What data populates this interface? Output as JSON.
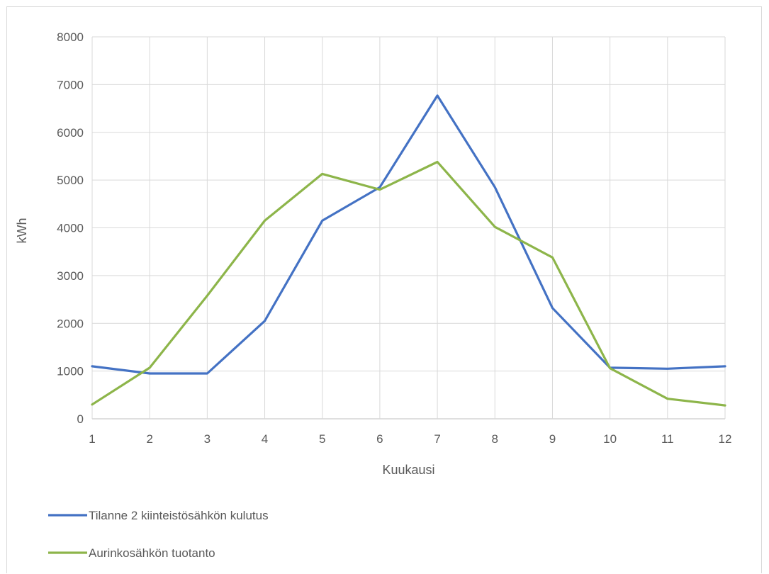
{
  "chart_data": {
    "type": "line",
    "x": [
      1,
      2,
      3,
      4,
      5,
      6,
      7,
      8,
      9,
      10,
      11,
      12
    ],
    "series": [
      {
        "name": "Tilanne 2 kiinteistösähkön kulutus",
        "color": "#4472C4",
        "values": [
          1100,
          950,
          950,
          2050,
          4150,
          4850,
          6770,
          4850,
          2320,
          1070,
          1050,
          1100
        ]
      },
      {
        "name": "Aurinkosähkön tuotanto",
        "color": "#8DB54A",
        "values": [
          300,
          1070,
          2580,
          4150,
          5130,
          4800,
          5380,
          4020,
          3380,
          1060,
          420,
          280
        ]
      }
    ],
    "xlabel": "Kuukausi",
    "ylabel": "kWh",
    "ylim": [
      0,
      8000
    ],
    "yticks": [
      0,
      1000,
      2000,
      3000,
      4000,
      5000,
      6000,
      7000,
      8000
    ],
    "xticks": [
      "1",
      "2",
      "3",
      "4",
      "5",
      "6",
      "7",
      "8",
      "9",
      "10",
      "11",
      "12"
    ],
    "grid": true,
    "legend_position": "bottom-left"
  }
}
